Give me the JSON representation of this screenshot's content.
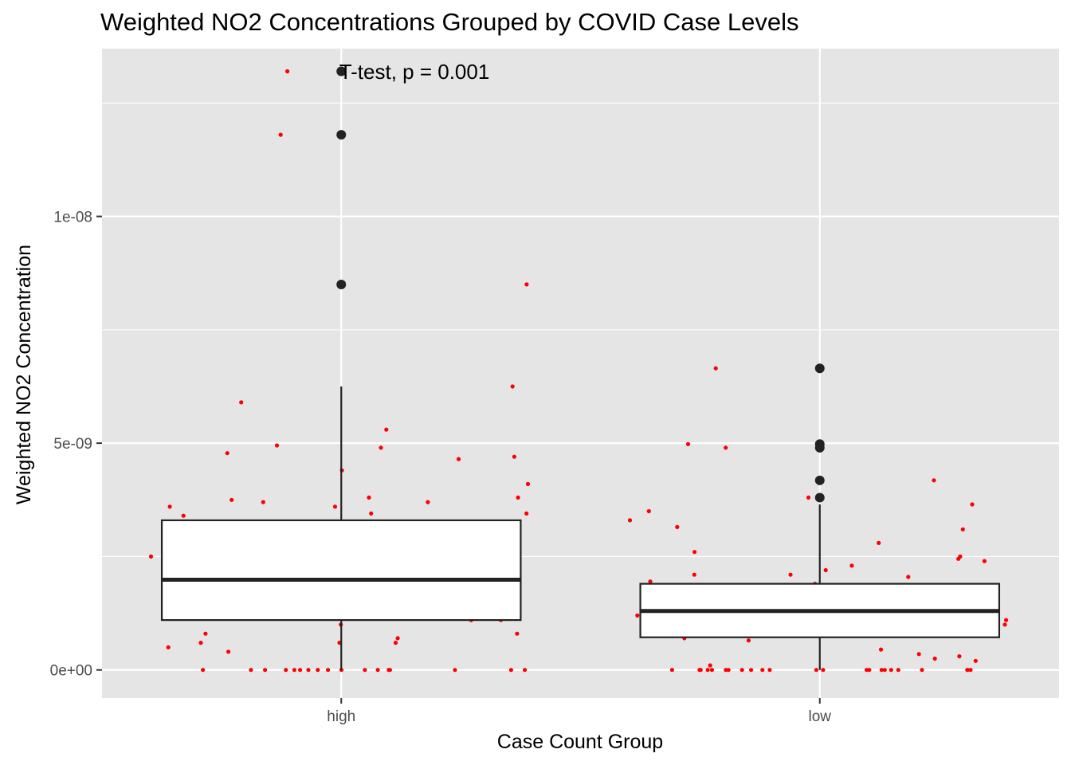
{
  "chart_data": {
    "type": "boxplot",
    "title": "Weighted NO2 Concentrations Grouped by COVID Case Levels",
    "xlabel": "Case Count Group",
    "ylabel": "Weighted NO2 Concentration",
    "annotation": "T-test, p = 0.001",
    "ylim": [
      -6.2e-10,
      1.37e-08
    ],
    "y_ticks": [
      0,
      5e-09,
      1e-08
    ],
    "y_tick_labels": [
      "0e+00",
      "5e-09",
      "1e-08"
    ],
    "categories": [
      "high",
      "low"
    ],
    "grid": true,
    "colors": {
      "panel": "#e5e5e5",
      "grid": "#ffffff",
      "box_fill": "#ffffff",
      "box_line": "#222222",
      "points": "#ff0000",
      "outliers": "#222222"
    },
    "boxes": [
      {
        "group": "high",
        "q1": 1.1e-09,
        "median": 1.99e-09,
        "q3": 3.3e-09,
        "whisker_low": 0,
        "whisker_high": 6.25e-09,
        "outliers": [
          8.5e-09,
          1.18e-08,
          1.32e-08
        ]
      },
      {
        "group": "low",
        "q1": 7.2e-10,
        "median": 1.3e-09,
        "q3": 1.9e-09,
        "whisker_low": 0,
        "whisker_high": 3.65e-09,
        "outliers": [
          3.8e-09,
          4.18e-09,
          4.9e-09,
          4.98e-09,
          6.65e-09
        ]
      }
    ],
    "jitter_points": [
      {
        "group": "high",
        "values": [
          0,
          0,
          0,
          0,
          0,
          0,
          0,
          0,
          0,
          0,
          0,
          0,
          0,
          0,
          0,
          0,
          0,
          4e-10,
          5e-10,
          6e-10,
          6e-10,
          6e-10,
          7e-10,
          8e-10,
          8e-10,
          1e-09,
          1.1e-09,
          1.1e-09,
          1.15e-09,
          1.15e-09,
          1.2e-09,
          1.2e-09,
          1.25e-09,
          1.25e-09,
          1.3e-09,
          1.3e-09,
          1.4e-09,
          1.4e-09,
          1.5e-09,
          1.6e-09,
          1.7e-09,
          1.7e-09,
          1.75e-09,
          1.75e-09,
          1.8e-09,
          1.85e-09,
          1.9e-09,
          1.95e-09,
          2e-09,
          2.05e-09,
          2.05e-09,
          2.1e-09,
          2.15e-09,
          2.2e-09,
          2.2e-09,
          2.25e-09,
          2.35e-09,
          2.45e-09,
          2.5e-09,
          2.5e-09,
          2.55e-09,
          2.6e-09,
          2.7e-09,
          2.7e-09,
          2.85e-09,
          2.9e-09,
          2.9e-09,
          3.1e-09,
          3.1e-09,
          3.15e-09,
          3.2e-09,
          3.25e-09,
          3.4e-09,
          3.45e-09,
          3.45e-09,
          3.6e-09,
          3.6e-09,
          3.7e-09,
          3.7e-09,
          3.75e-09,
          3.8e-09,
          3.8e-09,
          4.1e-09,
          4.4e-09,
          4.65e-09,
          4.7e-09,
          4.78e-09,
          4.9e-09,
          4.95e-09,
          5.3e-09,
          5.9e-09,
          6.25e-09,
          8.5e-09,
          1.18e-08,
          1.32e-08
        ]
      },
      {
        "group": "low",
        "values": [
          0,
          0,
          0,
          0,
          0,
          0,
          0,
          0,
          0,
          0,
          0,
          0,
          0,
          0,
          0,
          0,
          0,
          0,
          0,
          0,
          0,
          0,
          0,
          1e-10,
          2e-10,
          2.5e-10,
          3e-10,
          3.5e-10,
          4.5e-10,
          6.5e-10,
          7e-10,
          7.5e-10,
          8.5e-10,
          9e-10,
          9e-10,
          9e-10,
          1e-09,
          1e-09,
          1e-09,
          1.05e-09,
          1.1e-09,
          1.1e-09,
          1.1e-09,
          1.15e-09,
          1.15e-09,
          1.2e-09,
          1.2e-09,
          1.25e-09,
          1.3e-09,
          1.3e-09,
          1.3e-09,
          1.35e-09,
          1.35e-09,
          1.4e-09,
          1.45e-09,
          1.5e-09,
          1.5e-09,
          1.55e-09,
          1.6e-09,
          1.6e-09,
          1.65e-09,
          1.65e-09,
          1.7e-09,
          1.7e-09,
          1.75e-09,
          1.75e-09,
          1.8e-09,
          1.85e-09,
          1.9e-09,
          1.95e-09,
          2.05e-09,
          2.1e-09,
          2.1e-09,
          2.2e-09,
          2.3e-09,
          2.4e-09,
          2.45e-09,
          2.5e-09,
          2.6e-09,
          2.8e-09,
          3.1e-09,
          3.15e-09,
          3.3e-09,
          3.5e-09,
          3.65e-09,
          3.8e-09,
          4.18e-09,
          4.9e-09,
          4.98e-09,
          6.65e-09
        ]
      }
    ]
  }
}
